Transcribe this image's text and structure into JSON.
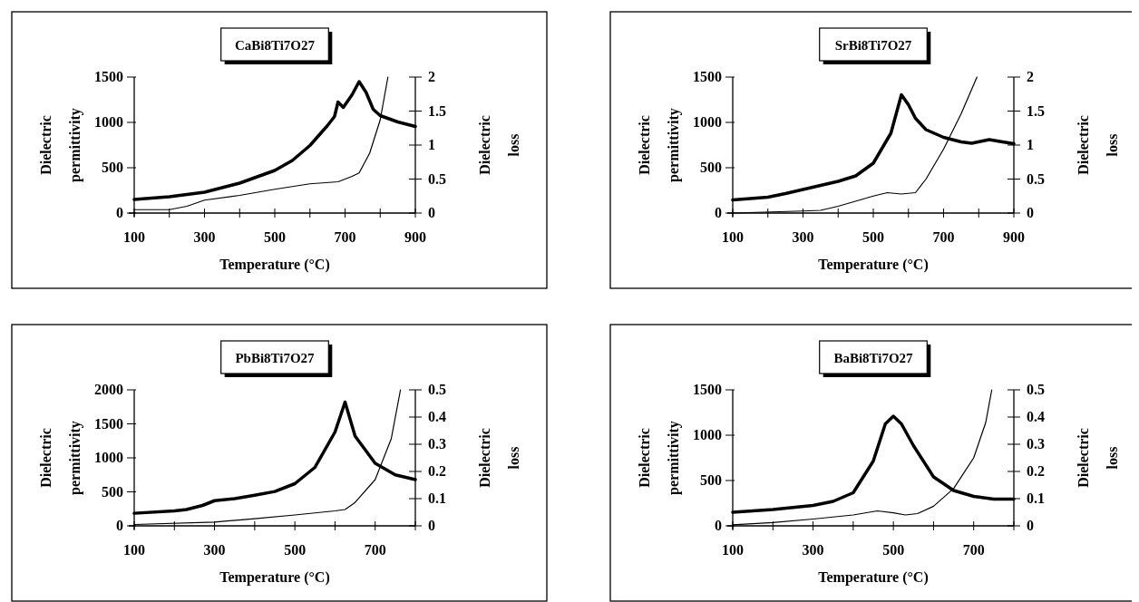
{
  "chart_data": [
    {
      "type": "line",
      "title": "CaBi8Ti7O27",
      "xlabel": "Temperature (°C)",
      "ylabel": "Dielectric permittivity",
      "y2label": "Dielectric loss",
      "xlim": [
        100,
        900
      ],
      "xticks": [
        100,
        {
          "value": 200,
          "label": null
        },
        300,
        {
          "value": 400,
          "label": null
        },
        500,
        {
          "value": 600,
          "label": null
        },
        700,
        {
          "value": 800,
          "label": null
        },
        900
      ],
      "ylim": [
        0,
        1500
      ],
      "yticks": [
        0,
        500,
        1000,
        1500
      ],
      "y2lim": [
        0,
        2
      ],
      "y2ticks": [
        0,
        0.5,
        1,
        1.5,
        2
      ],
      "series": [
        {
          "color": "#000000",
          "x": [
            100,
            200,
            300,
            400,
            500,
            550,
            600,
            650,
            670,
            680,
            695,
            720,
            740,
            760,
            780,
            800,
            850,
            900
          ],
          "values": [
            150,
            180,
            230,
            330,
            470,
            580,
            745,
            965,
            1065,
            1225,
            1165,
            1305,
            1450,
            1330,
            1145,
            1075,
            1005,
            955
          ]
        },
        {
          "color": "#000000",
          "axis": "y2",
          "x": [
            100,
            200,
            250,
            300,
            400,
            500,
            600,
            680,
            720,
            740,
            770,
            800,
            822
          ],
          "values": [
            0.05,
            0.05,
            0.1,
            0.19,
            0.26,
            0.35,
            0.43,
            0.46,
            0.54,
            0.59,
            0.88,
            1.37,
            2
          ]
        }
      ]
    },
    {
      "type": "line",
      "title": "SrBi8Ti7O27",
      "xlabel": "Temperature (°C)",
      "ylabel": "Dielectric permittivity",
      "y2label": "Dielectric loss",
      "xlim": [
        100,
        900
      ],
      "xticks": [
        100,
        {
          "value": 200,
          "label": null
        },
        300,
        {
          "value": 400,
          "label": null
        },
        500,
        {
          "value": 600,
          "label": null
        },
        700,
        {
          "value": 800,
          "label": null
        },
        900
      ],
      "ylim": [
        0,
        1500
      ],
      "yticks": [
        0,
        500,
        1000,
        1500
      ],
      "y2lim": [
        0,
        2
      ],
      "y2ticks": [
        0,
        0.5,
        1,
        1.5,
        2
      ],
      "series": [
        {
          "color": "#000000",
          "x": [
            100,
            200,
            250,
            300,
            400,
            450,
            500,
            550,
            580,
            600,
            620,
            650,
            700,
            750,
            780,
            830,
            860,
            900
          ],
          "values": [
            145,
            175,
            215,
            260,
            350,
            410,
            550,
            880,
            1305,
            1195,
            1045,
            920,
            835,
            785,
            770,
            810,
            790,
            765
          ]
        },
        {
          "color": "#000000",
          "axis": "y2",
          "x": [
            100,
            300,
            350,
            400,
            500,
            540,
            580,
            620,
            650,
            700,
            750,
            795
          ],
          "values": [
            0,
            0.03,
            0.04,
            0.1,
            0.25,
            0.3,
            0.28,
            0.3,
            0.5,
            0.94,
            1.46,
            2
          ]
        }
      ]
    },
    {
      "type": "line",
      "title": "PbBi8Ti7O27",
      "xlabel": "Temperature (°C)",
      "ylabel": "Dielectric permittivity",
      "y2label": "Dielectric loss",
      "xlim": [
        100,
        800
      ],
      "xticks": [
        100,
        {
          "value": 200,
          "label": null
        },
        300,
        {
          "value": 400,
          "label": null
        },
        500,
        {
          "value": 600,
          "label": null
        },
        700,
        {
          "value": 800,
          "label": null
        }
      ],
      "ylim": [
        0,
        2000
      ],
      "yticks": [
        0,
        500,
        1000,
        1500,
        2000
      ],
      "y2lim": [
        0,
        0.5
      ],
      "y2ticks": [
        0,
        0.1,
        0.2,
        0.3,
        0.4,
        0.5
      ],
      "series": [
        {
          "color": "#000000",
          "x": [
            100,
            200,
            230,
            270,
            300,
            350,
            400,
            450,
            500,
            550,
            600,
            625,
            650,
            700,
            750,
            800
          ],
          "values": [
            185,
            220,
            240,
            300,
            370,
            400,
            450,
            505,
            620,
            860,
            1380,
            1820,
            1320,
            920,
            750,
            680
          ]
        },
        {
          "color": "#000000",
          "axis": "y2",
          "x": [
            100,
            300,
            400,
            500,
            600,
            625,
            650,
            700,
            740,
            763
          ],
          "values": [
            0.005,
            0.014,
            0.026,
            0.04,
            0.055,
            0.06,
            0.086,
            0.17,
            0.32,
            0.5
          ]
        }
      ]
    },
    {
      "type": "line",
      "title": "BaBi8Ti7O27",
      "xlabel": "Temperature (°C)",
      "ylabel": "Dielectric permittivity",
      "y2label": "Dielectric loss",
      "xlim": [
        100,
        800
      ],
      "xticks": [
        100,
        {
          "value": 200,
          "label": null
        },
        300,
        {
          "value": 400,
          "label": null
        },
        500,
        {
          "value": 600,
          "label": null
        },
        700,
        {
          "value": 800,
          "label": null
        }
      ],
      "ylim": [
        0,
        1500
      ],
      "yticks": [
        0,
        500,
        1000,
        1500
      ],
      "y2lim": [
        0,
        0.5
      ],
      "y2ticks": [
        0,
        0.1,
        0.2,
        0.3,
        0.4,
        0.5
      ],
      "series": [
        {
          "color": "#000000",
          "x": [
            100,
            200,
            300,
            350,
            400,
            450,
            480,
            500,
            520,
            550,
            600,
            650,
            700,
            750,
            800
          ],
          "values": [
            150,
            180,
            225,
            270,
            365,
            715,
            1125,
            1210,
            1125,
            885,
            540,
            390,
            325,
            295,
            295
          ]
        },
        {
          "color": "#000000",
          "axis": "y2",
          "x": [
            100,
            200,
            300,
            400,
            460,
            500,
            530,
            560,
            600,
            650,
            700,
            730,
            745
          ],
          "values": [
            0.004,
            0.012,
            0.025,
            0.04,
            0.055,
            0.048,
            0.04,
            0.045,
            0.072,
            0.137,
            0.25,
            0.38,
            0.5
          ]
        }
      ]
    }
  ]
}
